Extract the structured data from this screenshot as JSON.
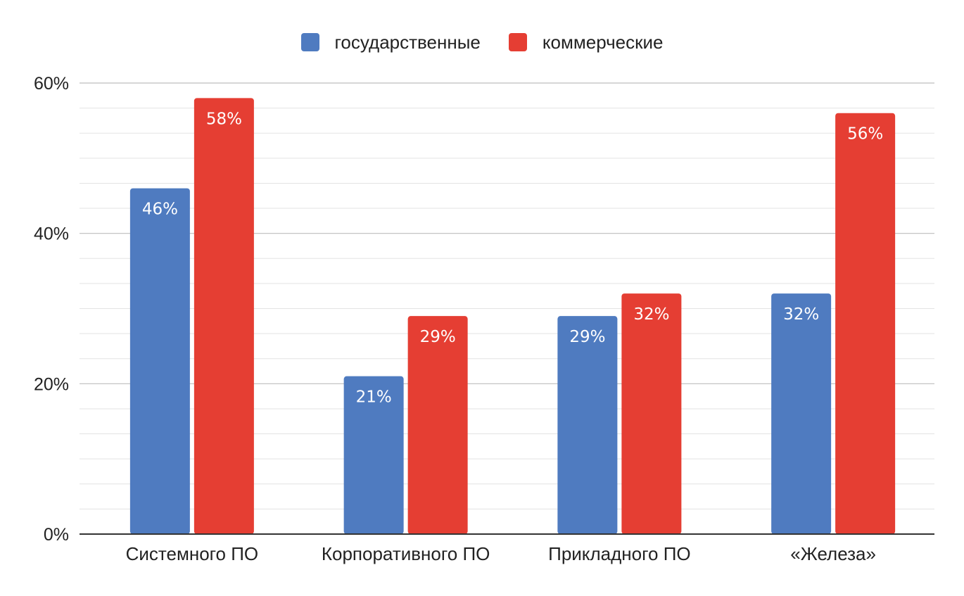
{
  "chart_data": {
    "type": "bar",
    "categories": [
      "Системного ПО",
      "Корпоративного ПО",
      "Прикладного ПО",
      "«Железа»"
    ],
    "series": [
      {
        "name": "государственные",
        "values": [
          46,
          21,
          29,
          32
        ],
        "color": "#4f7bc0",
        "labels": [
          "46%",
          "21%",
          "29%",
          "32%"
        ]
      },
      {
        "name": "коммерческие",
        "values": [
          58,
          29,
          32,
          56
        ],
        "color": "#e53e33",
        "labels": [
          "58%",
          "29%",
          "32%",
          "56%"
        ]
      }
    ],
    "ylim": [
      0,
      60
    ],
    "yticks": [
      0,
      20,
      40,
      60
    ],
    "ytick_labels": [
      "0%",
      "20%",
      "40%",
      "60%"
    ],
    "grid": true,
    "legend_position": "top-center",
    "title": "",
    "xlabel": "",
    "ylabel": ""
  }
}
